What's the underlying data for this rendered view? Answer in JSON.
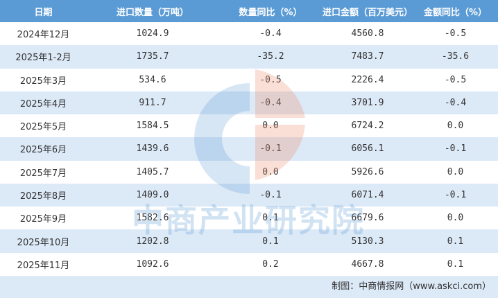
{
  "table": {
    "header": [
      "日期",
      "进口数量（万吨）",
      "数量同比（%）",
      "进口金额（百万美元）",
      "金额同比（%）"
    ],
    "rows": [
      [
        "2024年12月",
        "1024.9",
        "-0.4",
        "4560.8",
        "-0.5"
      ],
      [
        "2025年1-2月",
        "1735.7",
        "-35.2",
        "7483.7",
        "-35.6"
      ],
      [
        "2025年3月",
        "534.6",
        "-0.5",
        "2226.4",
        "-0.5"
      ],
      [
        "2025年4月",
        "911.7",
        "-0.4",
        "3701.9",
        "-0.4"
      ],
      [
        "2025年5月",
        "1584.5",
        "0.0",
        "6724.2",
        "0.0"
      ],
      [
        "2025年6月",
        "1439.6",
        "-0.1",
        "6056.1",
        "-0.1"
      ],
      [
        "2025年7月",
        "1405.7",
        "0.0",
        "5926.6",
        "0.0"
      ],
      [
        "2025年8月",
        "1409.0",
        "-0.1",
        "6071.4",
        "-0.1"
      ],
      [
        "2025年9月",
        "1582.6",
        "0.1",
        "6679.6",
        "0.0"
      ],
      [
        "2025年10月",
        "1202.8",
        "0.1",
        "5130.3",
        "0.1"
      ],
      [
        "2025年11月",
        "1092.6",
        "0.2",
        "4667.8",
        "0.1"
      ]
    ],
    "footer": "制图：中商情报网（www.askci.com）",
    "watermark": "中商产业研究院"
  }
}
